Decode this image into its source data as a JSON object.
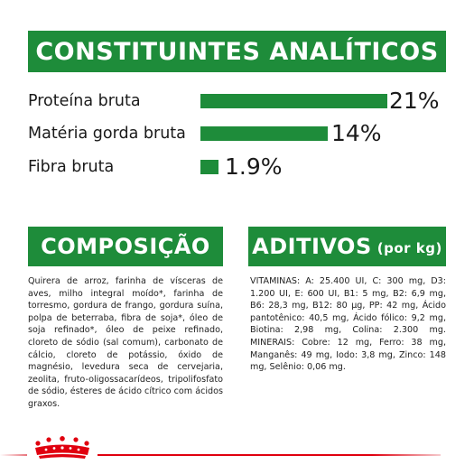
{
  "header": {
    "title": "CONSTITUINTES ANALÍTICOS"
  },
  "analysis": [
    {
      "label": "Proteína bruta",
      "value": "21%",
      "fraction": 0.21
    },
    {
      "label": "Matéria gorda bruta",
      "value": "14%",
      "fraction": 0.14
    },
    {
      "label": "Fibra bruta",
      "value": "1.9%",
      "fraction": 0.019
    }
  ],
  "composition": {
    "title": "COMPOSIÇÃO",
    "text": "Quirera de arroz, farinha de vísceras de aves, milho integral moído*, farinha de torresmo, gordura de frango, gordura suína, polpa de beterraba, fibra de soja*, óleo de soja refinado*, óleo de peixe refinado, cloreto de sódio (sal comum), carbonato de cálcio, cloreto de potássio, óxido de magnésio, levedura seca de cervejaria, zeolita, fruto-oligossacarídeos, tripolifosfato de sódio, ésteres de ácido cítrico com ácidos graxos."
  },
  "additives": {
    "title": "ADITIVOS",
    "title_suffix": "(por kg)",
    "text": "VITAMINAS: A: 25.400 UI, C: 300 mg, D3: 1.200 UI, E: 600 UI, B1: 5 mg, B2: 6,9 mg, B6: 28,3 mg, B12: 80 µg, PP: 42 mg, Ácido pantotênico: 40,5 mg, Ácido fólico: 9,2 mg, Biotina: 2,98 mg, Colina: 2.300 mg. MINERAIS: Cobre: 12 mg, Ferro: 38 mg, Manganês: 49 mg, Iodo: 3,8 mg, Zinco: 148 mg, Selênio: 0,06 mg."
  },
  "colors": {
    "brand_green": "#1e8c3a",
    "brand_red": "#e0000f"
  },
  "footer": {
    "logo": "royal-crown-icon"
  }
}
